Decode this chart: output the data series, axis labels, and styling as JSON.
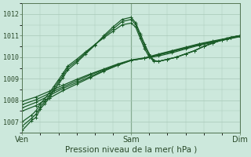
{
  "xlabel": "Pression niveau de la mer( hPa )",
  "ylim": [
    1006.5,
    1012.5
  ],
  "xlim": [
    0,
    96
  ],
  "yticks": [
    1007,
    1008,
    1009,
    1010,
    1011,
    1012
  ],
  "xtick_labels": [
    "Ven",
    "Sam",
    "Dim"
  ],
  "xtick_positions": [
    0,
    48,
    96
  ],
  "bg_color": "#cce8dc",
  "grid_color": "#a8c8b8",
  "line_color": "#1a5c28",
  "series": [
    {
      "x": [
        0,
        4,
        6,
        8,
        10,
        12,
        14,
        16,
        18,
        20,
        24,
        28,
        32,
        36,
        40,
        44,
        48,
        50,
        52,
        54,
        56,
        58,
        60,
        64,
        68,
        72,
        76,
        80,
        84,
        88,
        92,
        96
      ],
      "y": [
        1006.6,
        1007.05,
        1007.2,
        1007.6,
        1007.85,
        1008.1,
        1008.45,
        1008.75,
        1009.05,
        1009.4,
        1009.75,
        1010.15,
        1010.55,
        1011.0,
        1011.4,
        1011.75,
        1011.85,
        1011.6,
        1011.1,
        1010.6,
        1010.15,
        1009.85,
        1009.8,
        1009.9,
        1010.0,
        1010.15,
        1010.3,
        1010.5,
        1010.65,
        1010.8,
        1010.92,
        1011.0
      ]
    },
    {
      "x": [
        0,
        4,
        6,
        8,
        10,
        12,
        14,
        16,
        18,
        20,
        24,
        28,
        32,
        36,
        40,
        44,
        48,
        50,
        52,
        54,
        56,
        58,
        60,
        64,
        68,
        72,
        76,
        80,
        84,
        88,
        92,
        96
      ],
      "y": [
        1006.8,
        1007.15,
        1007.35,
        1007.7,
        1007.95,
        1008.2,
        1008.55,
        1008.85,
        1009.15,
        1009.5,
        1009.82,
        1010.2,
        1010.58,
        1010.95,
        1011.3,
        1011.65,
        1011.75,
        1011.52,
        1011.0,
        1010.5,
        1010.1,
        1009.85,
        1009.8,
        1009.9,
        1010.0,
        1010.15,
        1010.3,
        1010.5,
        1010.65,
        1010.8,
        1010.92,
        1011.0
      ]
    },
    {
      "x": [
        0,
        4,
        6,
        8,
        10,
        12,
        14,
        16,
        18,
        20,
        24,
        28,
        32,
        36,
        40,
        44,
        48,
        50,
        52,
        54,
        56,
        58,
        60,
        64,
        68,
        72,
        76,
        80,
        84,
        88,
        92,
        96
      ],
      "y": [
        1007.0,
        1007.3,
        1007.5,
        1007.85,
        1008.08,
        1008.35,
        1008.65,
        1008.95,
        1009.25,
        1009.58,
        1009.9,
        1010.25,
        1010.58,
        1010.9,
        1011.2,
        1011.5,
        1011.58,
        1011.4,
        1010.88,
        1010.38,
        1010.0,
        1009.82,
        1009.8,
        1009.9,
        1010.0,
        1010.15,
        1010.3,
        1010.5,
        1010.65,
        1010.8,
        1010.92,
        1011.0
      ]
    },
    {
      "x": [
        0,
        6,
        12,
        18,
        24,
        30,
        36,
        42,
        48,
        54,
        60,
        66,
        72,
        78,
        84,
        90,
        96
      ],
      "y": [
        1007.5,
        1007.75,
        1008.1,
        1008.45,
        1008.75,
        1009.05,
        1009.35,
        1009.62,
        1009.85,
        1009.95,
        1010.05,
        1010.2,
        1010.38,
        1010.55,
        1010.68,
        1010.82,
        1010.95
      ]
    },
    {
      "x": [
        0,
        6,
        12,
        18,
        24,
        30,
        36,
        42,
        48,
        54,
        60,
        66,
        72,
        78,
        84,
        90,
        96
      ],
      "y": [
        1007.65,
        1007.9,
        1008.22,
        1008.55,
        1008.82,
        1009.1,
        1009.38,
        1009.62,
        1009.85,
        1009.95,
        1010.1,
        1010.25,
        1010.42,
        1010.58,
        1010.7,
        1010.84,
        1010.97
      ]
    },
    {
      "x": [
        0,
        6,
        12,
        18,
        24,
        30,
        36,
        42,
        48,
        54,
        60,
        66,
        72,
        78,
        84,
        90,
        96
      ],
      "y": [
        1007.8,
        1008.02,
        1008.32,
        1008.62,
        1008.9,
        1009.18,
        1009.42,
        1009.65,
        1009.85,
        1009.95,
        1010.12,
        1010.28,
        1010.44,
        1010.6,
        1010.72,
        1010.85,
        1010.98
      ]
    },
    {
      "x": [
        0,
        6,
        12,
        18,
        24,
        30,
        36,
        42,
        48,
        54,
        60,
        66,
        72,
        78,
        84,
        90,
        96
      ],
      "y": [
        1007.95,
        1008.15,
        1008.42,
        1008.7,
        1008.97,
        1009.22,
        1009.45,
        1009.68,
        1009.87,
        1009.97,
        1010.14,
        1010.3,
        1010.46,
        1010.62,
        1010.75,
        1010.87,
        1011.0
      ]
    }
  ]
}
